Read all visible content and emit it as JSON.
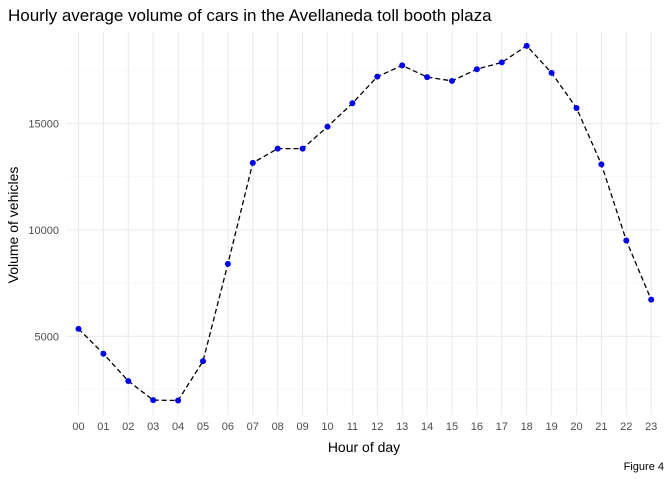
{
  "chart_data": {
    "type": "line",
    "title": "Hourly average volume of cars in the Avellaneda toll booth plaza",
    "xlabel": "Hour of day",
    "ylabel": "Volume of vehicles",
    "caption": "Figure 4",
    "categories": [
      "00",
      "01",
      "02",
      "03",
      "04",
      "05",
      "06",
      "07",
      "08",
      "09",
      "10",
      "11",
      "12",
      "13",
      "14",
      "15",
      "16",
      "17",
      "18",
      "19",
      "20",
      "21",
      "22",
      "23"
    ],
    "values": [
      5350,
      4180,
      2900,
      2000,
      1980,
      3830,
      8400,
      13150,
      13820,
      13820,
      14850,
      15950,
      17200,
      17730,
      17180,
      17000,
      17550,
      17870,
      18650,
      17380,
      15730,
      13080,
      9500,
      6720
    ],
    "ylim": [
      1300,
      19300
    ],
    "yticks": [
      5000,
      10000,
      15000
    ],
    "ytick_labels": [
      "5000",
      "10000",
      "15000"
    ],
    "grid": true,
    "line_style": "dashed",
    "colors": {
      "line": "#000000",
      "points": "#0000ff",
      "grid_major": "#ebebeb",
      "grid_minor": "#f5f5f5"
    }
  }
}
